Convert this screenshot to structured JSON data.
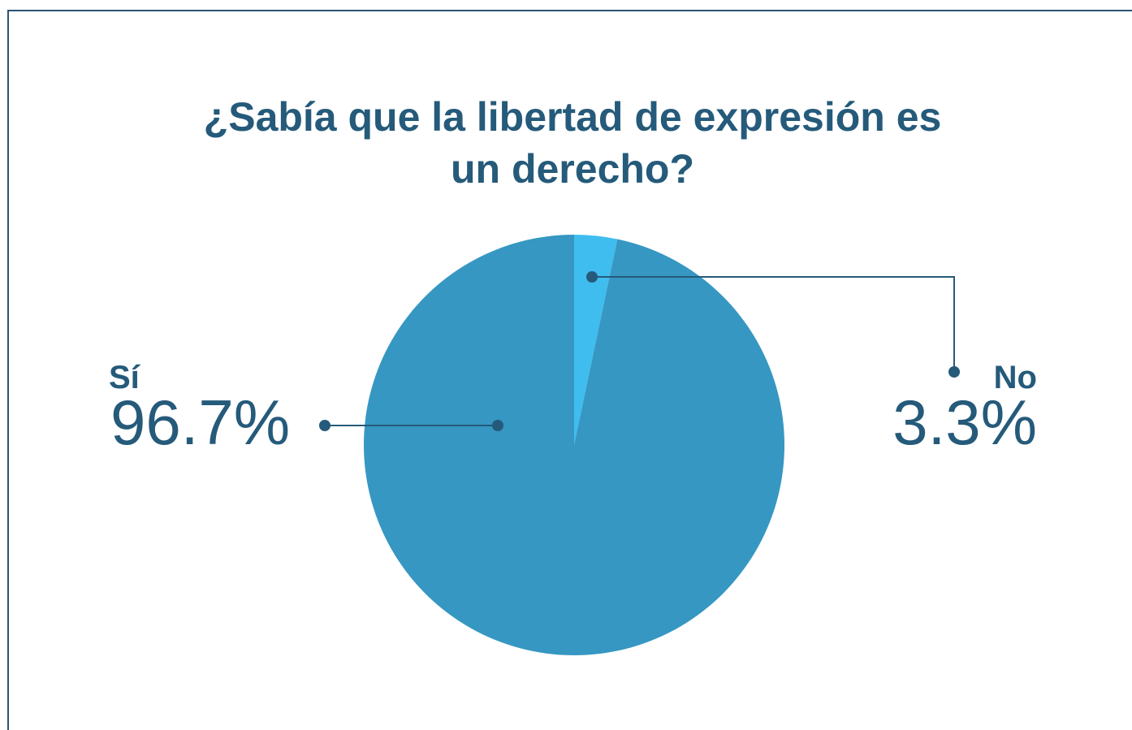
{
  "chart_data": {
    "type": "pie",
    "title": "¿Sabía que la libertad de expresión es un derecho?",
    "categories": [
      "Sí",
      "No"
    ],
    "values": [
      96.7,
      3.3
    ],
    "value_labels": [
      "96.7%",
      "3.3%"
    ],
    "colors": [
      "#3697c2",
      "#3fbdee"
    ]
  }
}
